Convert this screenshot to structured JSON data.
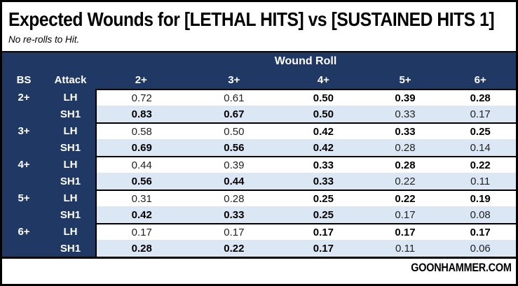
{
  "title": "Expected Wounds for [LETHAL HITS] vs [SUSTAINED HITS 1]",
  "subtitle": "No re-rolls to Hit.",
  "footer": {
    "brand": "GOONHAMMER.COM"
  },
  "colors": {
    "header_navy": "#1f3864",
    "row_alt_blue": "#dbe7f5",
    "border_black": "#000000",
    "page_white": "#ffffff"
  },
  "table": {
    "group_header": "Wound Roll",
    "columns": [
      "BS",
      "Attack",
      "2+",
      "3+",
      "4+",
      "5+",
      "6+"
    ],
    "bold_rule": "higher-or-equal value between LH and SH1 per wound-roll column is bold"
  },
  "chart_data": {
    "type": "table",
    "title": "Expected Wounds for [LETHAL HITS] vs [SUSTAINED HITS 1]",
    "subtitle": "No re-rolls to Hit.",
    "columns": [
      "2+",
      "3+",
      "4+",
      "5+",
      "6+"
    ],
    "rows": [
      {
        "bs": "2+",
        "attack": "LH",
        "values": [
          0.72,
          0.61,
          0.5,
          0.39,
          0.28
        ]
      },
      {
        "bs": "2+",
        "attack": "SH1",
        "values": [
          0.83,
          0.67,
          0.5,
          0.33,
          0.17
        ]
      },
      {
        "bs": "3+",
        "attack": "LH",
        "values": [
          0.58,
          0.5,
          0.42,
          0.33,
          0.25
        ]
      },
      {
        "bs": "3+",
        "attack": "SH1",
        "values": [
          0.69,
          0.56,
          0.42,
          0.28,
          0.14
        ]
      },
      {
        "bs": "4+",
        "attack": "LH",
        "values": [
          0.44,
          0.39,
          0.33,
          0.28,
          0.22
        ]
      },
      {
        "bs": "4+",
        "attack": "SH1",
        "values": [
          0.56,
          0.44,
          0.33,
          0.22,
          0.11
        ]
      },
      {
        "bs": "5+",
        "attack": "LH",
        "values": [
          0.31,
          0.28,
          0.25,
          0.22,
          0.19
        ]
      },
      {
        "bs": "5+",
        "attack": "SH1",
        "values": [
          0.42,
          0.33,
          0.25,
          0.17,
          0.08
        ]
      },
      {
        "bs": "6+",
        "attack": "LH",
        "values": [
          0.17,
          0.17,
          0.17,
          0.17,
          0.17
        ]
      },
      {
        "bs": "6+",
        "attack": "SH1",
        "values": [
          0.28,
          0.22,
          0.17,
          0.11,
          0.06
        ]
      }
    ]
  }
}
